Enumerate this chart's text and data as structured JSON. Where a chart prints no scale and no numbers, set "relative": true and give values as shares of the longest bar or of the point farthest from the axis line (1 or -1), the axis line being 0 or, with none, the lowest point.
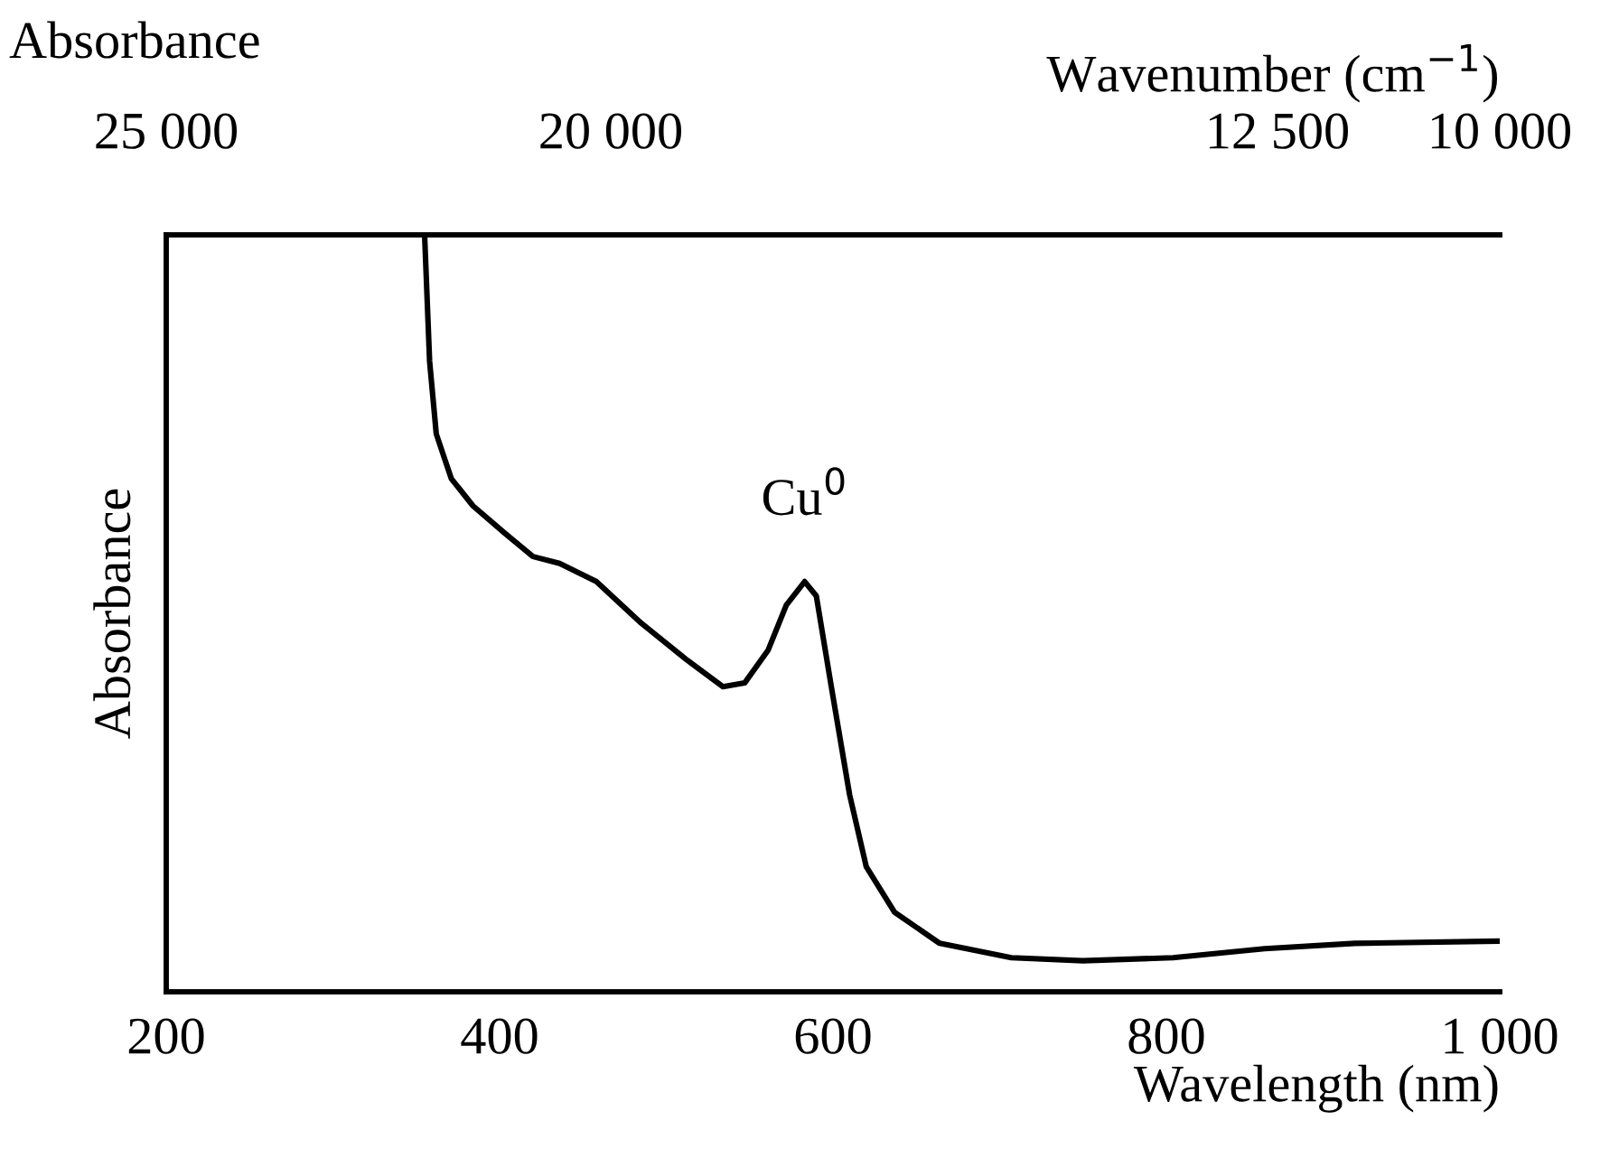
{
  "chart_data": {
    "type": "line",
    "relative": true,
    "xlabel": "Wavelength (nm)",
    "ylabel": "Absorbance",
    "x2label": "Wavenumber (cm$^{−1}$)",
    "xlim": [
      200,
      1000
    ],
    "xticks": [
      200,
      400,
      600,
      800,
      {
        "value": 1000,
        "label": "1 000"
      }
    ],
    "x2lim": [
      25000,
      10000
    ],
    "x2ticks": [
      {
        "value": 25000,
        "label": "25 000"
      },
      {
        "value": 20000,
        "label": "20 000"
      },
      {
        "value": 12500,
        "label": "12 500"
      },
      {
        "value": 10000,
        "label": "10 000"
      }
    ],
    "grid": false,
    "marker": "none",
    "line_style": "solid",
    "annotations": [
      {
        "text": "Cu$^{0}$",
        "x": 583,
        "y": 0.542
      },
      "Absorbance"
    ],
    "series": [
      {
        "color": "#000000",
        "x": [
          355,
          358,
          362,
          371,
          384,
          403,
          420,
          436,
          458,
          485,
          512,
          534,
          547,
          561,
          572,
          583,
          590,
          599,
          610,
          620,
          637,
          664,
          707,
          750,
          804,
          859,
          913,
          1000
        ],
        "values": [
          1.0,
          0.833,
          0.737,
          0.678,
          0.642,
          0.606,
          0.575,
          0.566,
          0.542,
          0.487,
          0.439,
          0.403,
          0.408,
          0.451,
          0.511,
          0.542,
          0.523,
          0.403,
          0.26,
          0.165,
          0.105,
          0.064,
          0.045,
          0.041,
          0.045,
          0.057,
          0.064,
          0.067
        ]
      }
    ]
  }
}
